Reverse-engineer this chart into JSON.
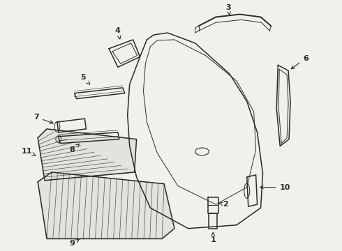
{
  "bg_color": "#f0f0ec",
  "line_color": "#2a2a2a",
  "fig_width": 4.9,
  "fig_height": 3.6,
  "dpi": 100,
  "label_fontsize": 8,
  "lw_main": 1.1,
  "lw_thin": 0.7,
  "lw_thick": 1.4
}
